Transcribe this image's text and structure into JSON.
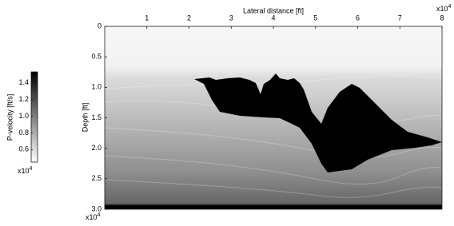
{
  "chart_data": {
    "type": "heatmap",
    "x_label": "Lateral distance [ft]",
    "y_label": "Depth [ft]",
    "xlim": [
      0,
      8
    ],
    "xticks": [
      1,
      2,
      3,
      4,
      5,
      6,
      7,
      8
    ],
    "x_multiplier": {
      "base": "x10",
      "power": "4"
    },
    "ylim": [
      0,
      3
    ],
    "yticks": [
      0,
      0.5,
      {
        "value": 1,
        "label": "1.0"
      },
      1.5,
      {
        "value": 2,
        "label": "2.0"
      },
      2.5,
      {
        "value": 3,
        "label": "3.0"
      }
    ],
    "y_multiplier": {
      "base": "x10",
      "power": "4"
    },
    "colorbar": {
      "label": "P-velocity [ft/s]",
      "clim": [
        0.45,
        1.53
      ],
      "ticks": [
        0.6,
        0.8,
        {
          "value": 1,
          "label": "1.0"
        },
        1.2,
        1.4
      ],
      "multiplier": {
        "base": "x10",
        "power": "4"
      }
    }
  }
}
